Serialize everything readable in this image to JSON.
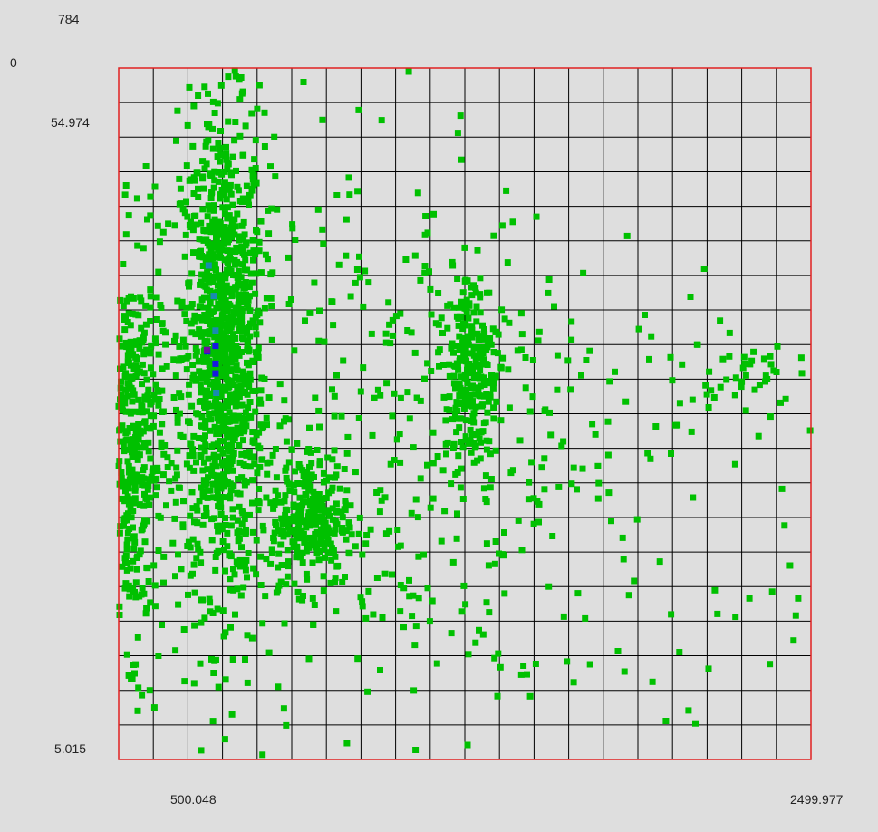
{
  "labels": {
    "count_max": "784",
    "count_min": "0",
    "y_top": "54.974",
    "y_bottom": "5.015",
    "x_left": "500.048",
    "x_right": "2499.977"
  },
  "colors": {
    "background": "#dedede",
    "border": "#e02020",
    "grid": "#000000",
    "point": "#00c000"
  },
  "chart_data": {
    "type": "scatter",
    "title": "",
    "xlabel": "",
    "ylabel": "",
    "xlim": [
      500.048,
      2499.977
    ],
    "ylim": [
      5.015,
      54.974
    ],
    "grid": true,
    "density_color_scale": [
      0,
      784
    ],
    "colormap_note": "green = low density, blue/purple = high density",
    "clusters": [
      {
        "x_center": 800,
        "y_center": 34.5,
        "x_spread": 60,
        "y_spread": 8.5,
        "n": 1100
      },
      {
        "x_center": 540,
        "y_center": 27.5,
        "x_spread": 45,
        "y_spread": 7,
        "n": 420
      },
      {
        "x_center": 1050,
        "y_center": 22.3,
        "x_spread": 55,
        "y_spread": 2.4,
        "n": 260
      },
      {
        "x_center": 1520,
        "y_center": 33.3,
        "x_spread": 40,
        "y_spread": 3.5,
        "n": 260
      },
      {
        "x_center": 1700,
        "y_center": 30.5,
        "x_spread": 520,
        "y_spread": 6,
        "n": 160
      },
      {
        "x_center": 1100,
        "y_center": 30,
        "x_spread": 360,
        "y_spread": 11,
        "n": 360
      },
      {
        "x_center": 2300,
        "y_center": 33,
        "x_spread": 70,
        "y_spread": 1.2,
        "n": 30
      },
      {
        "x_center": 1500,
        "y_center": 14.5,
        "x_spread": 650,
        "y_spread": 4.5,
        "n": 90
      }
    ],
    "high_density_points": [
      {
        "x": 780,
        "y": 34.9,
        "level": "high"
      },
      {
        "x": 780,
        "y": 33.6,
        "level": "high"
      },
      {
        "x": 780,
        "y": 32.9,
        "level": "high"
      },
      {
        "x": 756,
        "y": 34.5,
        "level": "high"
      },
      {
        "x": 775,
        "y": 38.5,
        "level": "mid"
      },
      {
        "x": 780,
        "y": 36.0,
        "level": "mid"
      },
      {
        "x": 760,
        "y": 40.7,
        "level": "mid"
      },
      {
        "x": 782,
        "y": 31.5,
        "level": "mid"
      }
    ]
  }
}
